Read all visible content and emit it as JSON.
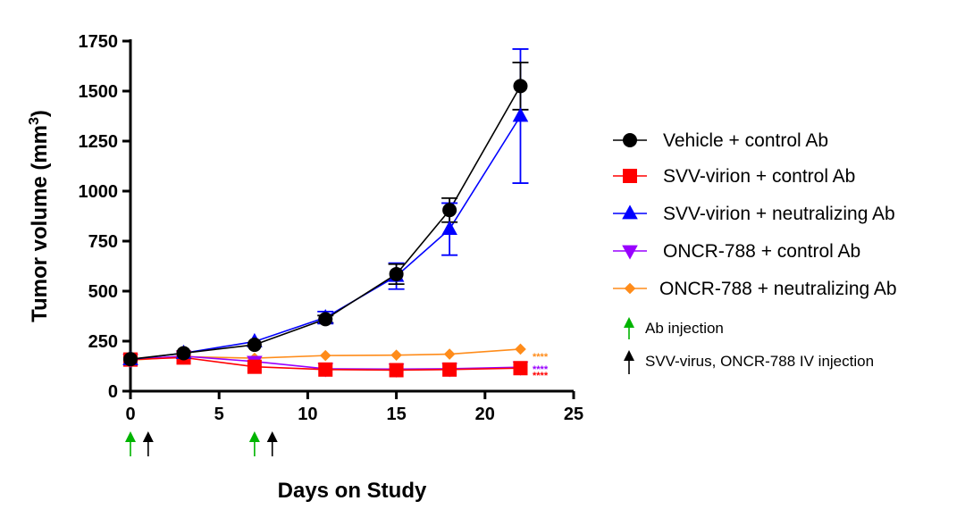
{
  "chart_data": {
    "type": "line",
    "title": "",
    "xlabel": "Days on Study",
    "ylabel_main": "Tumor volume (mm",
    "ylabel_sup": "3",
    "ylabel_end": ")",
    "xlim": [
      0,
      25
    ],
    "ylim": [
      0,
      1750
    ],
    "xticks": [
      0,
      5,
      10,
      15,
      20,
      25
    ],
    "yticks": [
      0,
      250,
      500,
      750,
      1000,
      1250,
      1500,
      1750
    ],
    "xtick_labels": [
      "0",
      "5",
      "10",
      "15",
      "20",
      "25"
    ],
    "ytick_labels": [
      "0",
      "250",
      "500",
      "750",
      "1000",
      "1250",
      "1500",
      "1750"
    ],
    "grid": false,
    "legend_position": "right",
    "series": [
      {
        "name": "Vehicle + control Ab",
        "color": "#000000",
        "marker": "circle",
        "x": [
          0,
          3,
          7,
          11,
          15,
          18,
          22
        ],
        "y": [
          160,
          190,
          232,
          360,
          585,
          905,
          1525
        ],
        "err": [
          0,
          0,
          0,
          18,
          50,
          60,
          118
        ]
      },
      {
        "name": "SVV-virion + control Ab",
        "color": "#ff0000",
        "marker": "square",
        "x": [
          0,
          3,
          7,
          11,
          15,
          18,
          22
        ],
        "y": [
          158,
          168,
          122,
          108,
          105,
          108,
          115
        ],
        "err": [
          0,
          0,
          0,
          0,
          0,
          0,
          0
        ]
      },
      {
        "name": "SVV-virion + neutralizing Ab",
        "color": "#0000ff",
        "marker": "triangle-up",
        "x": [
          0,
          3,
          7,
          11,
          15,
          18,
          22
        ],
        "y": [
          158,
          190,
          248,
          368,
          575,
          810,
          1375
        ],
        "err": [
          0,
          0,
          0,
          30,
          65,
          130,
          335
        ]
      },
      {
        "name": "ONCR-788 + control Ab",
        "color": "#9900ff",
        "marker": "triangle-down",
        "x": [
          0,
          3,
          7,
          11,
          15,
          18,
          22
        ],
        "y": [
          158,
          175,
          148,
          112,
          110,
          112,
          120
        ],
        "err": [
          0,
          0,
          0,
          0,
          0,
          0,
          0
        ]
      },
      {
        "name": "ONCR-788 + neutralizing  Ab",
        "color": "#ff8c1a",
        "marker": "diamond",
        "x": [
          0,
          3,
          7,
          11,
          15,
          18,
          22
        ],
        "y": [
          155,
          172,
          165,
          178,
          180,
          185,
          210
        ],
        "err": [
          0,
          0,
          0,
          0,
          0,
          0,
          0
        ]
      }
    ],
    "annotations": {
      "significance": [
        {
          "label": "****",
          "color": "#ff8c1a",
          "series": "ONCR-788 + neutralizing  Ab"
        },
        {
          "label": "****",
          "color": "#9900ff",
          "series": "ONCR-788 + control Ab"
        },
        {
          "label": "****",
          "color": "#ff0000",
          "series": "SVV-virion + control Ab"
        }
      ],
      "injection_markers": [
        {
          "day": 0,
          "color": "#00b400",
          "type": "Ab injection"
        },
        {
          "day": 1,
          "color": "#000000",
          "type": "SVV-virus, ONCR-788 IV injection"
        },
        {
          "day": 7,
          "color": "#00b400",
          "type": "Ab injection"
        },
        {
          "day": 8,
          "color": "#000000",
          "type": "SVV-virus, ONCR-788 IV injection"
        }
      ],
      "arrow_legend": [
        {
          "label": "Ab injection",
          "color": "#00b400"
        },
        {
          "label": "SVV-virus, ONCR-788 IV injection",
          "color": "#000000"
        }
      ]
    }
  }
}
